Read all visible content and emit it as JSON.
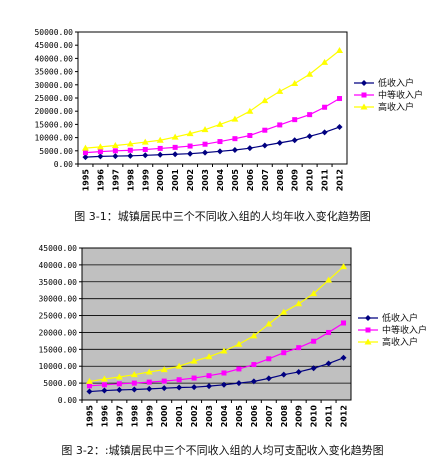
{
  "chart_data": [
    {
      "type": "line",
      "title": "",
      "caption": "图 3-1：城镇居民中三个不同收入组的人均年收入变化趋势图",
      "x": [
        "1995",
        "1996",
        "1997",
        "1998",
        "1999",
        "2000",
        "2001",
        "2002",
        "2003",
        "2004",
        "2005",
        "2006",
        "2007",
        "2008",
        "2009",
        "2010",
        "2011",
        "2012"
      ],
      "ylim": [
        0,
        50000
      ],
      "yticks": [
        "0.00",
        "5000.00",
        "10000.00",
        "15000.00",
        "20000.00",
        "25000.00",
        "30000.00",
        "35000.00",
        "40000.00",
        "45000.00",
        "50000.00"
      ],
      "grid": false,
      "legend_position": "right",
      "series": [
        {
          "name": "低收入户",
          "color": "#000080",
          "marker": "diamond",
          "values": [
            2600,
            2900,
            3000,
            3100,
            3300,
            3500,
            3700,
            3900,
            4300,
            4800,
            5300,
            6000,
            7000,
            8000,
            9000,
            10500,
            12000,
            14000
          ]
        },
        {
          "name": "中等收入户",
          "color": "#ff00ff",
          "marker": "square",
          "values": [
            4300,
            4700,
            5000,
            5200,
            5500,
            5900,
            6300,
            6800,
            7500,
            8500,
            9600,
            10800,
            12800,
            14800,
            16800,
            18700,
            21500,
            24800
          ]
        },
        {
          "name": "高收入户",
          "color": "#ffff00",
          "marker": "triangle",
          "values": [
            6000,
            6500,
            7000,
            7600,
            8300,
            9000,
            10200,
            11500,
            13000,
            15000,
            17000,
            20000,
            24000,
            27500,
            30500,
            34000,
            38500,
            43000
          ]
        }
      ]
    },
    {
      "type": "line",
      "title": "",
      "caption": "图 3-2：:城镇居民中三个不同收入组的人均可支配收入变化趋势图",
      "x": [
        "1995",
        "1996",
        "1997",
        "1998",
        "1999",
        "2000",
        "2001",
        "2002",
        "2003",
        "2004",
        "2005",
        "2006",
        "2007",
        "2008",
        "2009",
        "2010",
        "2011",
        "2012"
      ],
      "ylim": [
        0,
        45000
      ],
      "yticks": [
        "0.00",
        "5000.00",
        "10000.00",
        "15000.00",
        "20000.00",
        "25000.00",
        "30000.00",
        "35000.00",
        "40000.00",
        "45000.00"
      ],
      "grid": true,
      "legend_position": "right",
      "series": [
        {
          "name": "低收入户",
          "color": "#000080",
          "marker": "diamond",
          "values": [
            2500,
            2800,
            3000,
            3100,
            3300,
            3500,
            3700,
            3800,
            4100,
            4500,
            5000,
            5500,
            6400,
            7500,
            8300,
            9400,
            10800,
            12500
          ]
        },
        {
          "name": "中等收入户",
          "color": "#ff00ff",
          "marker": "square",
          "values": [
            4200,
            4500,
            4800,
            5000,
            5300,
            5600,
            6000,
            6500,
            7200,
            8000,
            9200,
            10500,
            12200,
            14000,
            15500,
            17400,
            20000,
            22800
          ]
        },
        {
          "name": "高收入户",
          "color": "#ffff00",
          "marker": "triangle",
          "values": [
            5500,
            6200,
            6800,
            7500,
            8300,
            9000,
            10000,
            11500,
            12800,
            14500,
            16500,
            19000,
            22500,
            26000,
            28500,
            31500,
            35500,
            39500
          ]
        }
      ]
    }
  ]
}
